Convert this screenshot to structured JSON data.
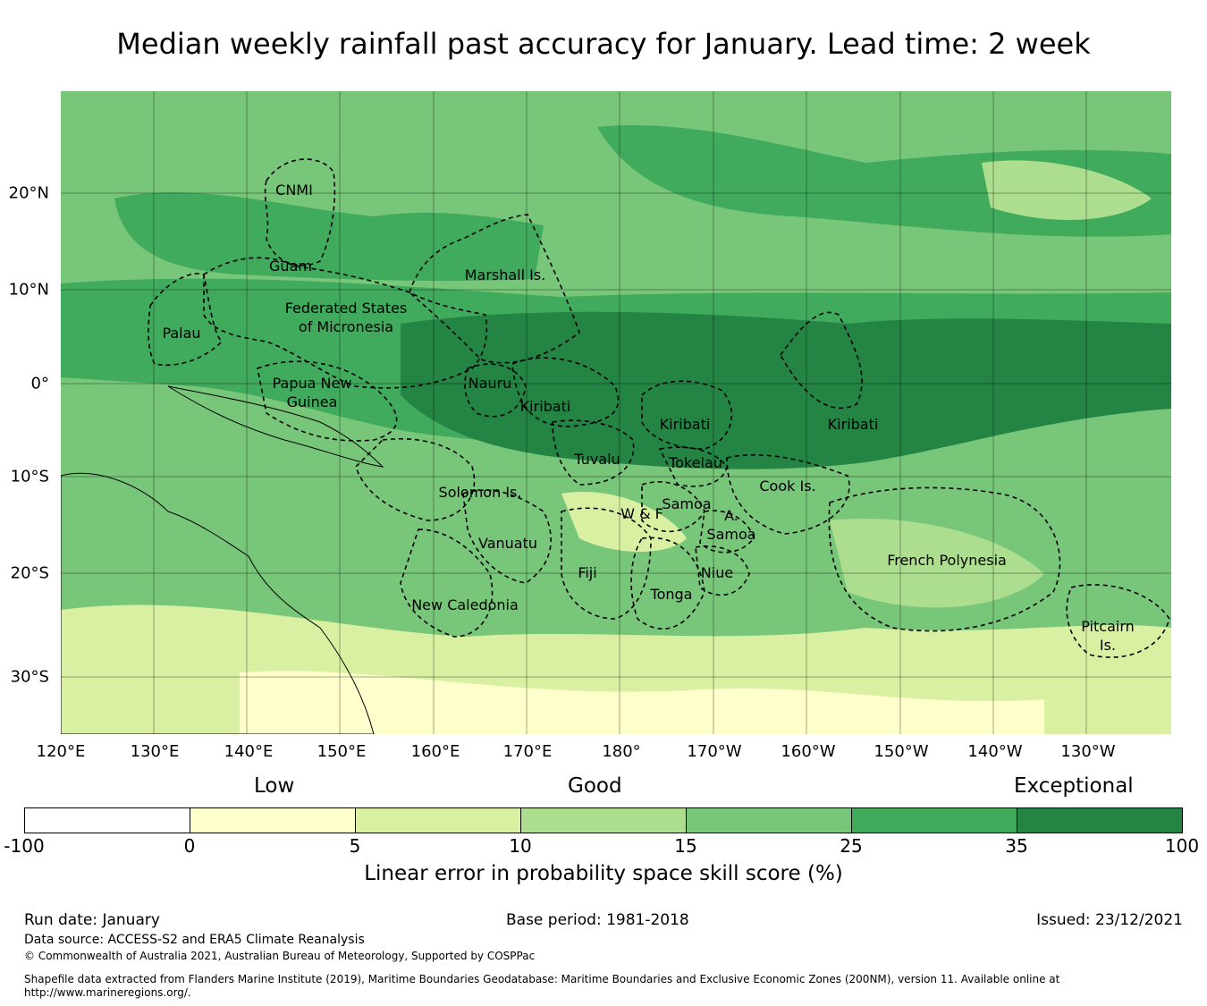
{
  "title": "Median weekly rainfall past accuracy for January. Lead time: 2 week",
  "map": {
    "lon_ticks": [
      "120°E",
      "130°E",
      "140°E",
      "150°E",
      "160°E",
      "170°E",
      "180°",
      "170°W",
      "160°W",
      "150°W",
      "140°W",
      "130°W"
    ],
    "lat_ticks": [
      "20°N",
      "10°N",
      "0°",
      "10°S",
      "20°S",
      "30°S"
    ],
    "regions": {
      "cnmi": "CNMI",
      "guam": "Guam",
      "marshall": "Marshall Is.",
      "fsm_1": "Federated States",
      "fsm_2": "of Micronesia",
      "palau": "Palau",
      "png_1": "Papua New",
      "png_2": "Guinea",
      "nauru": "Nauru",
      "kiribati_w": "Kiribati",
      "kiribati_c": "Kiribati",
      "kiribati_e": "Kiribati",
      "tuvalu": "Tuvalu",
      "tokelau": "Tokelau",
      "solomon": "Solomon Is.",
      "cook": "Cook Is.",
      "samoa": "Samoa",
      "wf": "W & F",
      "asamoa_1": "A.",
      "asamoa_2": "Samoa",
      "vanuatu": "Vanuatu",
      "fiji": "Fiji",
      "niue": "Niue",
      "tonga": "Tonga",
      "frenchpoly": "French Polynesia",
      "newcal": "New Caledonia",
      "pitcairn_1": "Pitcairn",
      "pitcairn_2": "Is."
    }
  },
  "legend": {
    "categories": [
      "Low",
      "Good",
      "Exceptional"
    ],
    "ticks": [
      "-100",
      "0",
      "5",
      "10",
      "15",
      "25",
      "35",
      "100"
    ],
    "colors": [
      "#ffffff",
      "#ffffcc",
      "#d9f0a3",
      "#addd8e",
      "#78c679",
      "#41ab5d",
      "#238443"
    ],
    "label": "Linear error in probability space skill score (%)"
  },
  "footer": {
    "run_date": "Run date: January",
    "base_period": "Base period: 1981-2018",
    "issued": "Issued: 23/12/2021",
    "data_source": "Data source: ACCESS-S2 and ERA5 Climate Reanalysis",
    "copyright": "© Commonwealth of Australia 2021, Australian Bureau of Meteorology, Supported by COSPPac",
    "shapefile_note": "Shapefile data extracted from Flanders Marine Institute (2019), Maritime Boundaries Geodatabase: Maritime Boundaries and Exclusive Economic Zones (200NM), version 11. Available online at http://www.marineregions.org/."
  }
}
